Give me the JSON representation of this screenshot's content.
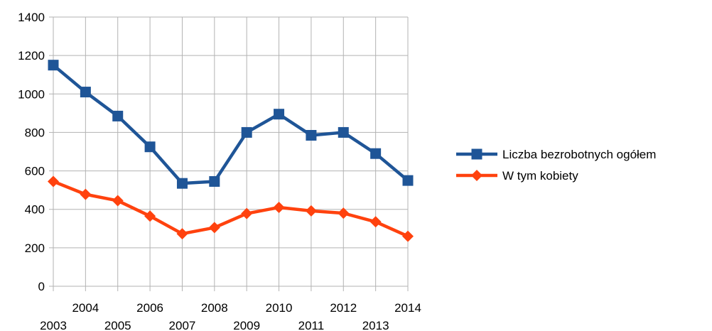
{
  "chart_data": {
    "type": "line",
    "x": [
      "2003",
      "2004",
      "2005",
      "2006",
      "2007",
      "2008",
      "2009",
      "2010",
      "2011",
      "2012",
      "2013",
      "2014"
    ],
    "series": [
      {
        "name": "Liczba bezrobotnych ogółem",
        "color": "#1f5597",
        "marker": "square",
        "values": [
          1150,
          1010,
          885,
          725,
          535,
          545,
          800,
          895,
          785,
          800,
          690,
          550
        ]
      },
      {
        "name": "W tym kobiety",
        "color": "#ff420e",
        "marker": "diamond",
        "values": [
          545,
          478,
          445,
          365,
          273,
          305,
          378,
          410,
          392,
          380,
          335,
          260
        ]
      }
    ],
    "yticks": [
      "0",
      "200",
      "400",
      "600",
      "800",
      "1000",
      "1200",
      "1400"
    ],
    "ylim": [
      0,
      1400
    ],
    "grid": true,
    "legend": "right",
    "title": "",
    "xlabel": "",
    "ylabel": ""
  }
}
